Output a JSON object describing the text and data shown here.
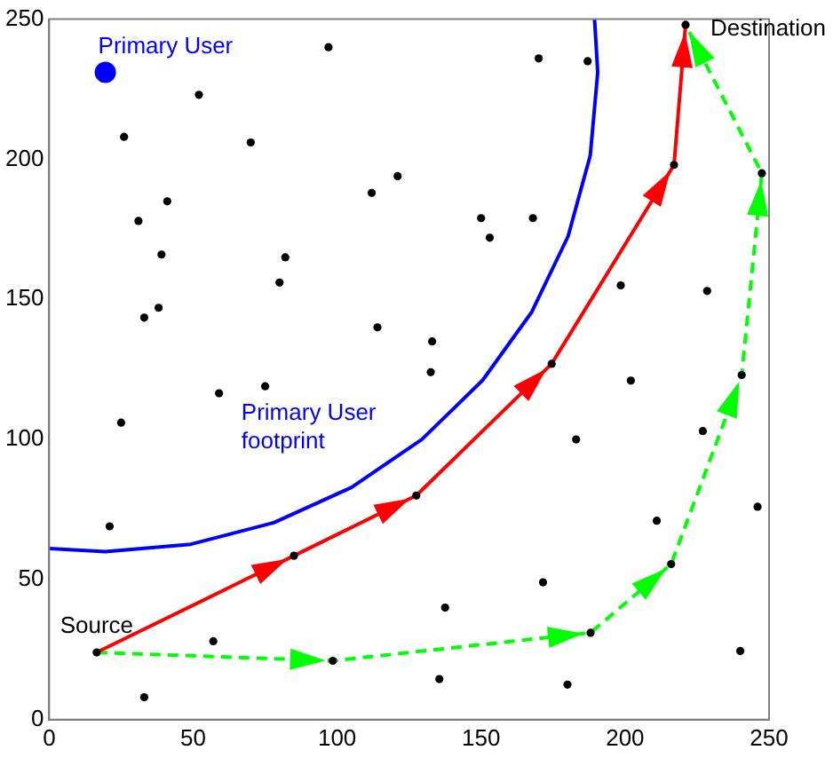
{
  "chart_data": {
    "type": "scatter",
    "xlim": [
      0,
      250
    ],
    "ylim": [
      0,
      250
    ],
    "xticks": [
      0,
      50,
      100,
      150,
      200,
      250
    ],
    "yticks": [
      0,
      50,
      100,
      150,
      200,
      250
    ],
    "grid": false,
    "series": [
      {
        "color": "#000000",
        "marker": "circle",
        "x": [
          97,
          52,
          26,
          70,
          112,
          121,
          41,
          31,
          39,
          82,
          80,
          33,
          38,
          114,
          133,
          170,
          187,
          221,
          217,
          247.5,
          150,
          168,
          153,
          198.5,
          228.5,
          174.5,
          25,
          59,
          75,
          132.5,
          21,
          85,
          127.5,
          16.5,
          57,
          33,
          98.5,
          202,
          227,
          183,
          240.5,
          246,
          211,
          216,
          171.5,
          137.5,
          188,
          135.5,
          180,
          240
        ],
        "values": [
          240,
          223,
          208,
          206,
          188,
          194,
          185,
          178,
          166,
          165,
          156,
          143.5,
          147,
          140,
          135,
          236,
          235,
          248,
          198,
          195,
          179,
          179,
          172,
          155,
          153,
          127,
          106,
          116.5,
          119,
          124,
          69,
          58.5,
          80,
          24,
          28,
          8,
          21,
          121,
          103,
          100,
          123,
          76,
          71,
          55.5,
          49,
          40,
          31,
          14.5,
          12.5,
          24.5
        ]
      },
      {
        "color": "#0000ff",
        "marker": "circle",
        "x": [
          19.5
        ],
        "values": [
          231
        ]
      },
      {
        "type": "line",
        "color": "#0000ff",
        "marker": "none",
        "line_style": "solid",
        "x": [
          0,
          19.5,
          49.2,
          78,
          105,
          129.4,
          150.5,
          167.6,
          180.2,
          187.9,
          190.5,
          189.4
        ],
        "values": [
          61.1,
          60,
          62.6,
          70.3,
          82.9,
          100,
          121.1,
          145.5,
          172.5,
          201.3,
          231,
          250
        ]
      },
      {
        "type": "line",
        "color": "#ff0000",
        "marker": "none",
        "line_style": "solid",
        "x": [
          16.5,
          85,
          127.5,
          174.5,
          217,
          221
        ],
        "values": [
          24,
          58.5,
          80,
          127,
          198,
          248
        ]
      },
      {
        "type": "line",
        "color": "#00ff00",
        "marker": "none",
        "line_style": "dashed",
        "x": [
          16.5,
          98.5,
          188,
          216,
          240.5,
          247.5,
          221
        ],
        "values": [
          24,
          21,
          31,
          55.5,
          123,
          195,
          248
        ]
      }
    ],
    "annotations": [
      {
        "text": "Primary User",
        "x": 19.5,
        "y": 231
      },
      {
        "text": "Primary User\nfootprint",
        "x": 105,
        "y": 82.9
      },
      {
        "text": "Source",
        "x": 16.5,
        "y": 24
      },
      {
        "text": "Destination",
        "x": 221,
        "y": 248
      }
    ]
  }
}
